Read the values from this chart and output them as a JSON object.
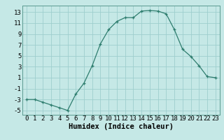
{
  "x": [
    0,
    1,
    2,
    3,
    4,
    5,
    6,
    7,
    8,
    9,
    10,
    11,
    12,
    13,
    14,
    15,
    16,
    17,
    18,
    19,
    20,
    21,
    22,
    23
  ],
  "y": [
    -3,
    -3,
    -3.5,
    -4,
    -4.5,
    -5,
    -2,
    0,
    3.2,
    7.2,
    9.8,
    11.3,
    12.0,
    12.0,
    13.2,
    13.3,
    13.2,
    12.7,
    9.8,
    6.2,
    4.9,
    3.2,
    1.2,
    1.0
  ],
  "line_color": "#2e7d6e",
  "marker": "+",
  "bg_color": "#c5e8e6",
  "grid_color": "#9ecece",
  "xlabel": "Humidex (Indice chaleur)",
  "xlabel_fontsize": 7.5,
  "ylabel_ticks": [
    13,
    11,
    9,
    7,
    5,
    3,
    1,
    -1,
    -3,
    -5
  ],
  "xlim": [
    -0.5,
    23.5
  ],
  "ylim": [
    -5.8,
    14.2
  ],
  "tick_fontsize": 6.5
}
